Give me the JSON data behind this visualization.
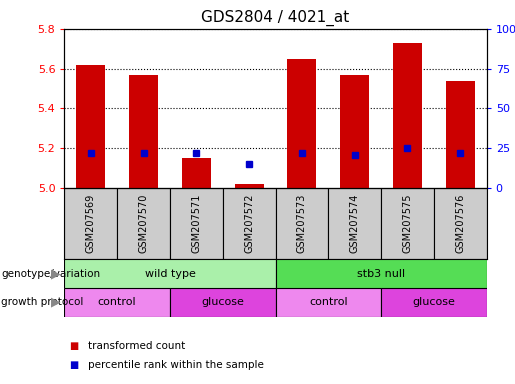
{
  "title": "GDS2804 / 4021_at",
  "samples": [
    "GSM207569",
    "GSM207570",
    "GSM207571",
    "GSM207572",
    "GSM207573",
    "GSM207574",
    "GSM207575",
    "GSM207576"
  ],
  "transformed_count": [
    5.62,
    5.57,
    5.15,
    5.02,
    5.65,
    5.57,
    5.73,
    5.54
  ],
  "percentile_rank": [
    22,
    22,
    22,
    15,
    22,
    21,
    25,
    22
  ],
  "y_min": 5.0,
  "y_max": 5.8,
  "y_ticks_left": [
    5.0,
    5.2,
    5.4,
    5.6,
    5.8
  ],
  "y_ticks_right": [
    0,
    25,
    50,
    75,
    100
  ],
  "bar_color": "#cc0000",
  "dot_color": "#0000cc",
  "genotype_groups": [
    {
      "label": "wild type",
      "start": 0,
      "end": 4,
      "color": "#aaf0aa"
    },
    {
      "label": "stb3 null",
      "start": 4,
      "end": 8,
      "color": "#55dd55"
    }
  ],
  "growth_protocol_groups": [
    {
      "label": "control",
      "start": 0,
      "end": 2,
      "color": "#ee88ee"
    },
    {
      "label": "glucose",
      "start": 2,
      "end": 4,
      "color": "#dd44dd"
    },
    {
      "label": "control",
      "start": 4,
      "end": 6,
      "color": "#ee88ee"
    },
    {
      "label": "glucose",
      "start": 6,
      "end": 8,
      "color": "#dd44dd"
    }
  ],
  "legend_items": [
    {
      "label": "transformed count",
      "color": "#cc0000"
    },
    {
      "label": "percentile rank within the sample",
      "color": "#0000cc"
    }
  ],
  "left_label_genotype": "genotype/variation",
  "left_label_growth": "growth protocol",
  "title_fontsize": 11,
  "tick_fontsize": 8,
  "bar_width": 0.55,
  "sample_box_color": "#cccccc",
  "fig_width": 5.15,
  "fig_height": 3.84,
  "dpi": 100
}
